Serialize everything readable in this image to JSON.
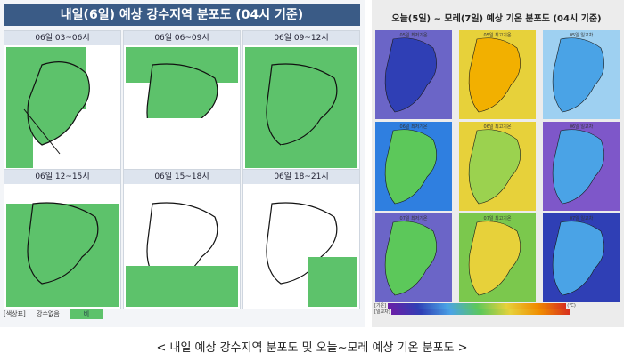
{
  "left": {
    "title": "내일(6일) 예상 강수지역 분포도 (04시 기준)",
    "panels": [
      {
        "label": "06일 03~06시"
      },
      {
        "label": "06일 06~09시"
      },
      {
        "label": "06일 09~12시"
      },
      {
        "label": "06일 12~15시"
      },
      {
        "label": "06일 15~18시"
      },
      {
        "label": "06일 18~21시"
      }
    ],
    "legend": {
      "title": "[색상표]",
      "none": "강수없음",
      "rain": "비"
    }
  },
  "right": {
    "title": "오늘(5일) ~ 모레(7일) 예상 기온 분포도 (04시 기준)",
    "panels": [
      {
        "label": "05일 최저기온"
      },
      {
        "label": "05일 최고기온"
      },
      {
        "label": "05일 일교차"
      },
      {
        "label": "06일 최저기온"
      },
      {
        "label": "06일 최고기온"
      },
      {
        "label": "06일 일교차"
      },
      {
        "label": "07일 최저기온"
      },
      {
        "label": "07일 최고기온"
      },
      {
        "label": "07일 일교차"
      }
    ],
    "scale_labels": {
      "temp": "[기온]",
      "diff": "[일교차]",
      "unit": "(℃)"
    }
  },
  "caption": "< 내일 예상 강수지역 분포도 및 오늘~모레 예상 기온 분포도 >",
  "colors": {
    "rain": "#5dc26b",
    "header": "#3a5b86"
  }
}
